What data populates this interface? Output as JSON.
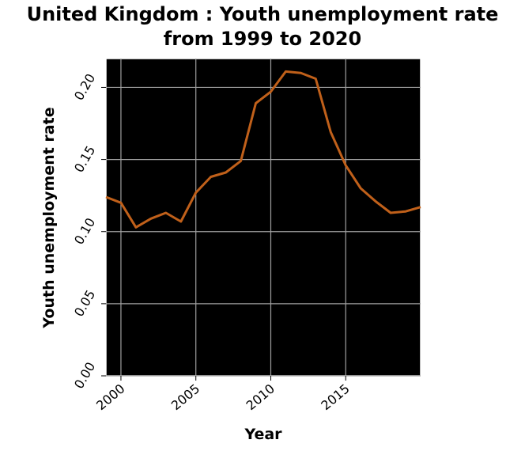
{
  "chart_data": {
    "type": "line",
    "title": "United Kingdom : Youth unemployment rate from 1999 to 2020",
    "title_lines": [
      "United Kingdom : Youth unemployment rate",
      "from 1999 to 2020"
    ],
    "xlabel": "Year",
    "ylabel": "Youth unemployment rate",
    "xlim": [
      1999,
      2020
    ],
    "ylim": [
      0,
      0.22
    ],
    "xticks": [
      2000,
      2005,
      2010,
      2015
    ],
    "xtick_labels": [
      "2000",
      "2005",
      "2010",
      "2015"
    ],
    "yticks": [
      0,
      0.05,
      0.1,
      0.15,
      0.2
    ],
    "ytick_labels": [
      "0.00",
      "0.05",
      "0.10",
      "0.15",
      "0.20"
    ],
    "grid": true,
    "background": "#000000",
    "grid_color": "#a0a0a0",
    "line_color": "#c0601a",
    "series": [
      {
        "x": [
          1999,
          2000,
          2001,
          2002,
          2003,
          2004,
          2005,
          2006,
          2007,
          2008,
          2009,
          2010,
          2011,
          2012,
          2013,
          2014,
          2015,
          2016,
          2017,
          2018,
          2019,
          2020
        ],
        "values": [
          0.124,
          0.12,
          0.103,
          0.109,
          0.113,
          0.107,
          0.127,
          0.138,
          0.141,
          0.149,
          0.189,
          0.197,
          0.211,
          0.21,
          0.206,
          0.169,
          0.146,
          0.13,
          0.121,
          0.113,
          0.114,
          0.117
        ]
      }
    ]
  }
}
